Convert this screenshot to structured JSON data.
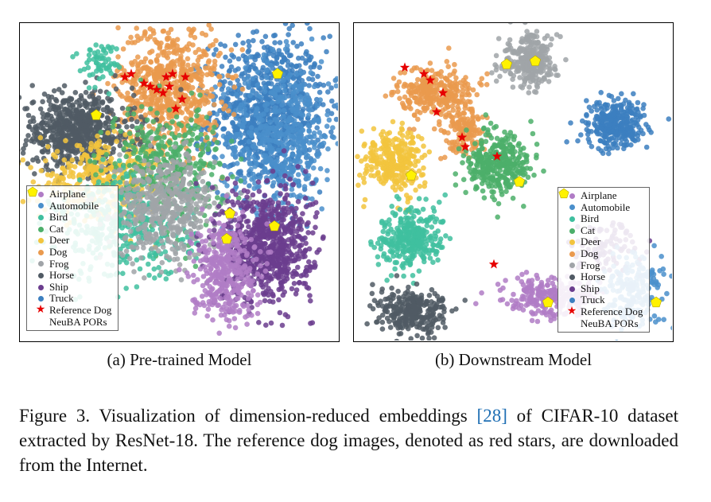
{
  "legend": {
    "entries": [
      {
        "label": "Airplane",
        "color": "#b07cc6",
        "marker": "dot"
      },
      {
        "label": "Automobile",
        "color": "#4a8fcb",
        "marker": "dot"
      },
      {
        "label": "Bird",
        "color": "#3fbf9f",
        "marker": "dot"
      },
      {
        "label": "Cat",
        "color": "#4caf6a",
        "marker": "dot"
      },
      {
        "label": "Deer",
        "color": "#f2c43d",
        "marker": "dot"
      },
      {
        "label": "Dog",
        "color": "#ea9a4e",
        "marker": "dot"
      },
      {
        "label": "Frog",
        "color": "#a0a4a8",
        "marker": "dot"
      },
      {
        "label": "Horse",
        "color": "#505a64",
        "marker": "dot"
      },
      {
        "label": "Ship",
        "color": "#6b3d8e",
        "marker": "dot"
      },
      {
        "label": "Truck",
        "color": "#3c7fc0",
        "marker": "dot"
      },
      {
        "label": "Reference Dog",
        "color": "#e60000",
        "marker": "star"
      },
      {
        "label": "NeuBA PORs",
        "color": "#fff200",
        "marker": "pentagon"
      }
    ]
  },
  "subcaptions": {
    "a": "(a) Pre-trained Model",
    "b": "(b) Downstream Model"
  },
  "caption": {
    "prefix": "Figure 3. Visualization of dimension-reduced embeddings ",
    "cite": "[28]",
    "suffix": " of CIFAR-10 dataset extracted by ResNet-18. The reference dog images, denoted as red stars, are downloaded from the Internet."
  },
  "chart_data": [
    {
      "type": "scatter",
      "title": "(a) Pre-trained Model",
      "xlim": [
        0,
        100
      ],
      "ylim": [
        0,
        100
      ],
      "clusters": [
        {
          "name": "Truck",
          "color": "#3c7fc0",
          "n": 900,
          "cx": 78,
          "cy": 72,
          "sx": 9,
          "sy": 12
        },
        {
          "name": "Automobile",
          "color": "#4a8fcb",
          "n": 500,
          "cx": 82,
          "cy": 64,
          "sx": 9,
          "sy": 12
        },
        {
          "name": "Dog",
          "color": "#ea9a4e",
          "n": 650,
          "cx": 47,
          "cy": 80,
          "sx": 8,
          "sy": 10
        },
        {
          "name": "Horse",
          "color": "#505a64",
          "n": 700,
          "cx": 18,
          "cy": 66,
          "sx": 9,
          "sy": 6
        },
        {
          "name": "Deer",
          "color": "#f2c43d",
          "n": 380,
          "cx": 26,
          "cy": 50,
          "sx": 10,
          "sy": 6
        },
        {
          "name": "Cat",
          "color": "#4caf6a",
          "n": 380,
          "cx": 46,
          "cy": 55,
          "sx": 9,
          "sy": 9
        },
        {
          "name": "Bird",
          "color": "#3fbf9f",
          "n": 380,
          "cx": 33,
          "cy": 35,
          "sx": 11,
          "sy": 8
        },
        {
          "name": "Frog",
          "color": "#a0a4a8",
          "n": 480,
          "cx": 46,
          "cy": 42,
          "sx": 8,
          "sy": 8
        },
        {
          "name": "Ship",
          "color": "#6b3d8e",
          "n": 750,
          "cx": 78,
          "cy": 30,
          "sx": 7,
          "sy": 9
        },
        {
          "name": "Airplane",
          "color": "#b07cc6",
          "n": 380,
          "cx": 64,
          "cy": 22,
          "sx": 5,
          "sy": 8
        },
        {
          "name": "Bird",
          "color": "#3fbf9f",
          "n": 60,
          "cx": 25,
          "cy": 88,
          "sx": 3,
          "sy": 3
        }
      ],
      "reference_dog": [
        [
          33,
          83
        ],
        [
          35,
          84
        ],
        [
          39,
          81
        ],
        [
          41,
          80
        ],
        [
          43,
          79
        ],
        [
          45,
          78
        ],
        [
          47,
          80
        ],
        [
          46,
          83
        ],
        [
          48,
          84
        ],
        [
          51,
          76
        ],
        [
          49,
          73
        ],
        [
          52,
          83
        ]
      ],
      "neuba_pors": [
        [
          24,
          71
        ],
        [
          81,
          84
        ],
        [
          66,
          40
        ],
        [
          80,
          36
        ],
        [
          65,
          32
        ]
      ]
    },
    {
      "type": "scatter",
      "title": "(b) Downstream Model",
      "xlim": [
        0,
        100
      ],
      "ylim": [
        0,
        100
      ],
      "clusters": [
        {
          "name": "Frog",
          "color": "#a0a4a8",
          "n": 300,
          "cx": 55,
          "cy": 88,
          "sx": 4.5,
          "sy": 4
        },
        {
          "name": "Dog",
          "color": "#ea9a4e",
          "n": 300,
          "cx": 26,
          "cy": 78,
          "sx": 6,
          "sy": 4
        },
        {
          "name": "Dog",
          "color": "#ea9a4e",
          "n": 140,
          "cx": 35,
          "cy": 66,
          "sx": 3,
          "sy": 4
        },
        {
          "name": "Truck",
          "color": "#3c7fc0",
          "n": 320,
          "cx": 82,
          "cy": 68,
          "sx": 4.5,
          "sy": 3.8
        },
        {
          "name": "Deer",
          "color": "#f2c43d",
          "n": 300,
          "cx": 12,
          "cy": 57,
          "sx": 4.5,
          "sy": 5
        },
        {
          "name": "Cat",
          "color": "#4caf6a",
          "n": 350,
          "cx": 45,
          "cy": 56,
          "sx": 5,
          "sy": 5
        },
        {
          "name": "Bird",
          "color": "#3fbf9f",
          "n": 320,
          "cx": 18,
          "cy": 32,
          "sx": 5,
          "sy": 5
        },
        {
          "name": "Airplane",
          "color": "#b07cc6",
          "n": 260,
          "cx": 62,
          "cy": 14,
          "sx": 7,
          "sy": 3
        },
        {
          "name": "Horse",
          "color": "#505a64",
          "n": 280,
          "cx": 18,
          "cy": 9,
          "sx": 5.5,
          "sy": 3.5
        },
        {
          "name": "Ship",
          "color": "#6b3d8e",
          "n": 90,
          "cx": 80,
          "cy": 30,
          "sx": 6,
          "sy": 4
        },
        {
          "name": "Automobile",
          "color": "#4a8fcb",
          "n": 200,
          "cx": 88,
          "cy": 16,
          "sx": 5,
          "sy": 6
        }
      ],
      "reference_dog": [
        [
          16,
          86
        ],
        [
          22,
          84
        ],
        [
          24,
          82
        ],
        [
          28,
          78
        ],
        [
          26,
          72
        ],
        [
          34,
          64
        ],
        [
          35,
          61
        ],
        [
          45,
          58
        ],
        [
          44,
          24
        ]
      ],
      "neuba_pors": [
        [
          48,
          87
        ],
        [
          57,
          88
        ],
        [
          18,
          52
        ],
        [
          52,
          50
        ],
        [
          61,
          12
        ],
        [
          95,
          12
        ]
      ]
    }
  ]
}
